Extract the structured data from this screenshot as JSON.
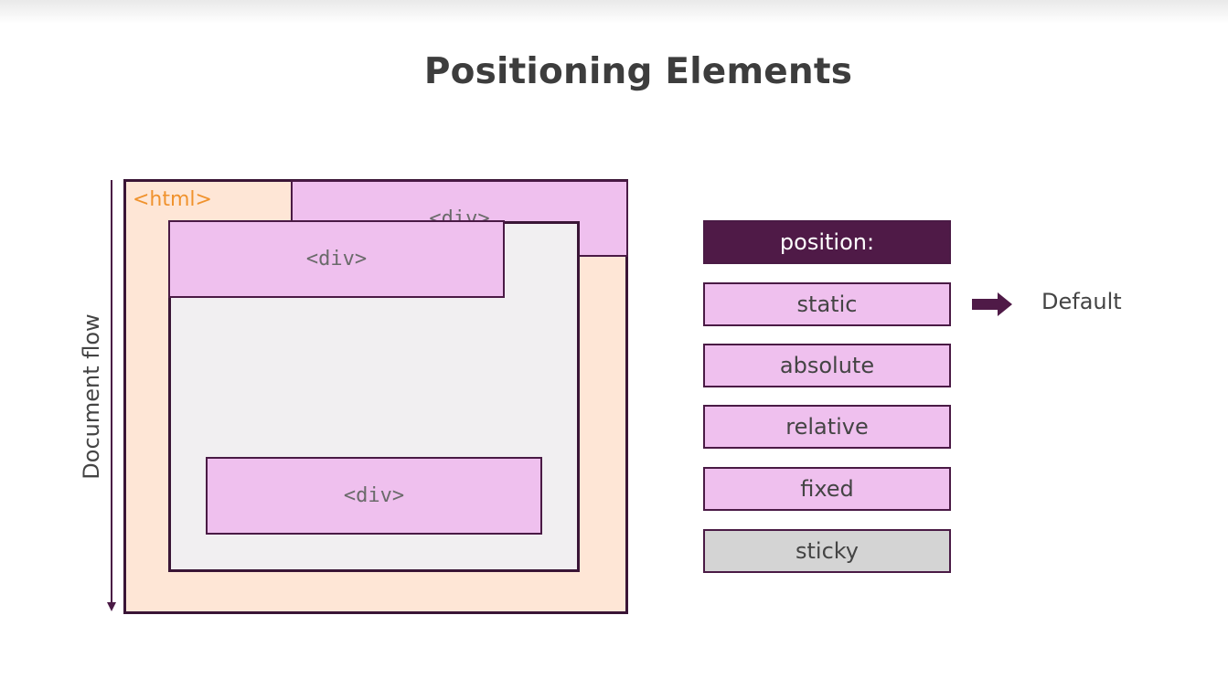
{
  "title": "Positioning Elements",
  "diagram": {
    "flow_label": "Document flow",
    "html_label": "<html>",
    "div_label": "<div>"
  },
  "position_list": {
    "header": "position:",
    "values": [
      "static",
      "absolute",
      "relative",
      "fixed",
      "sticky"
    ],
    "default_note": "Default"
  },
  "colors": {
    "accent_dark": "#4f1a47",
    "div_fill": "#efc0ee",
    "html_fill": "#fee6d6",
    "html_label": "#f0922d",
    "container_fill": "#f1eff1",
    "sticky_fill": "#d4d4d4"
  },
  "icons": {
    "flow_arrow": "arrow-down-icon",
    "default_arrow": "arrow-right-icon"
  }
}
